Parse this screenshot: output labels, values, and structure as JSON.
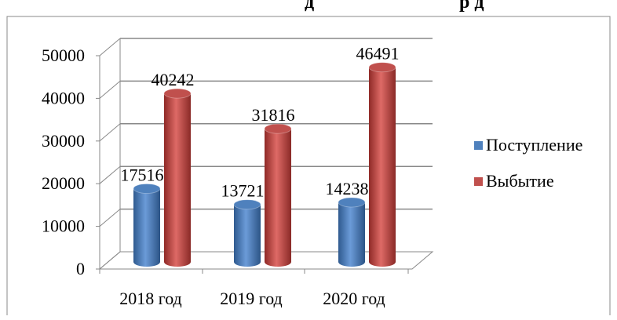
{
  "title_fragment_left": "д",
  "title_fragment_right": "р д",
  "chart_data": {
    "type": "bar",
    "style": "3d-cylinder",
    "categories": [
      "2018 год",
      "2019 год",
      "2020 год"
    ],
    "series": [
      {
        "name": "Поступление",
        "values": [
          17516,
          13721,
          14238
        ],
        "color": "#4f81bd"
      },
      {
        "name": "Выбытие",
        "values": [
          40242,
          31816,
          46491
        ],
        "color": "#c0504d"
      }
    ],
    "yticks": [
      "0",
      "10000",
      "20000",
      "30000",
      "40000",
      "50000"
    ],
    "ylim": [
      0,
      50000
    ],
    "grid": true,
    "legend_position": "right"
  }
}
